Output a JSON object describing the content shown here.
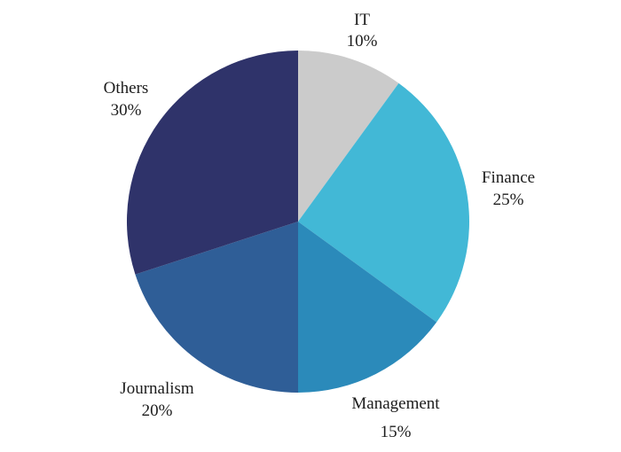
{
  "chart_data": {
    "type": "pie",
    "title": "",
    "start_angle_deg": 0,
    "direction": "clockwise",
    "slices": [
      {
        "label": "IT",
        "value": 10,
        "value_label": "10%",
        "color": "#cbcbcb"
      },
      {
        "label": "Finance",
        "value": 25,
        "value_label": "25%",
        "color": "#42b8d6"
      },
      {
        "label": "Management",
        "value": 15,
        "value_label": "15%",
        "color": "#2b8aba"
      },
      {
        "label": "Journalism",
        "value": 20,
        "value_label": "20%",
        "color": "#2f5e97"
      },
      {
        "label": "Others",
        "value": 30,
        "value_label": "30%",
        "color": "#2f336a"
      }
    ]
  }
}
